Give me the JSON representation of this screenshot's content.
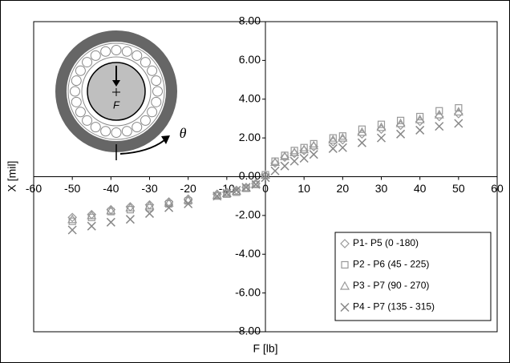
{
  "chart_data": {
    "type": "scatter",
    "xlabel": "F [lb]",
    "ylabel": "X [mil]",
    "annotations": [
      "F",
      "θ"
    ],
    "xlim": [
      -60,
      60
    ],
    "xticks": [
      -60,
      -50,
      -40,
      -30,
      -20,
      -10,
      0,
      10,
      20,
      30,
      40,
      50,
      60
    ],
    "ylim": [
      -8,
      8
    ],
    "yticks": [
      {
        "value": -8,
        "label": "-8.00"
      },
      {
        "value": -6,
        "label": "-6.00"
      },
      {
        "value": -4,
        "label": "-4.00"
      },
      {
        "value": -2,
        "label": "-2.00"
      },
      {
        "value": 0,
        "label": "0.00"
      },
      {
        "value": 2,
        "label": "2.00"
      },
      {
        "value": 4,
        "label": "4.00"
      },
      {
        "value": 6,
        "label": "6.00"
      },
      {
        "value": 8,
        "label": "8.00"
      }
    ],
    "grid": false,
    "legend": "lower right",
    "x": [
      -50,
      -45,
      -40,
      -35,
      -30,
      -25,
      -20,
      -12.5,
      -10,
      -7.5,
      -5,
      -2.5,
      0,
      2.5,
      5,
      7.5,
      10,
      12.5,
      17.5,
      20,
      25,
      30,
      35,
      40,
      45,
      50
    ],
    "series": [
      {
        "name": "P1- P5 (0 -180)",
        "color": "#999999",
        "marker": "diamond",
        "values": [
          -2.1,
          -1.95,
          -1.7,
          -1.55,
          -1.45,
          -1.3,
          -1.15,
          -0.9,
          -0.8,
          -0.7,
          -0.55,
          -0.35,
          0.05,
          0.7,
          1.0,
          1.2,
          1.35,
          1.55,
          1.8,
          1.9,
          2.2,
          2.45,
          2.65,
          2.85,
          3.1,
          3.25
        ]
      },
      {
        "name": "P2 - P6 (45 - 225)",
        "color": "#999999",
        "marker": "square",
        "values": [
          -2.3,
          -2.1,
          -1.8,
          -1.7,
          -1.6,
          -1.4,
          -1.25,
          -1.0,
          -0.9,
          -0.8,
          -0.6,
          -0.4,
          0.1,
          0.8,
          1.1,
          1.35,
          1.5,
          1.7,
          2.0,
          2.1,
          2.45,
          2.7,
          2.9,
          3.1,
          3.4,
          3.55
        ]
      },
      {
        "name": "P3 - P7 (90 - 270)",
        "color": "#999999",
        "marker": "triangle",
        "values": [
          -2.2,
          -2.0,
          -1.75,
          -1.6,
          -1.5,
          -1.35,
          -1.2,
          -0.95,
          -0.85,
          -0.75,
          -0.58,
          -0.38,
          0.08,
          0.75,
          1.05,
          1.25,
          1.4,
          1.6,
          1.9,
          2.0,
          2.3,
          2.55,
          2.75,
          2.95,
          3.2,
          3.35
        ]
      },
      {
        "name": "P4 - P7 (135 - 315)",
        "color": "#888888",
        "marker": "cross",
        "values": [
          -2.75,
          -2.55,
          -2.35,
          -2.2,
          -1.9,
          -1.6,
          -1.4,
          -1.0,
          -0.85,
          -0.7,
          -0.55,
          -0.4,
          -0.05,
          0.3,
          0.55,
          0.8,
          0.95,
          1.15,
          1.45,
          1.5,
          1.75,
          2.0,
          2.2,
          2.4,
          2.6,
          2.75
        ]
      }
    ]
  }
}
